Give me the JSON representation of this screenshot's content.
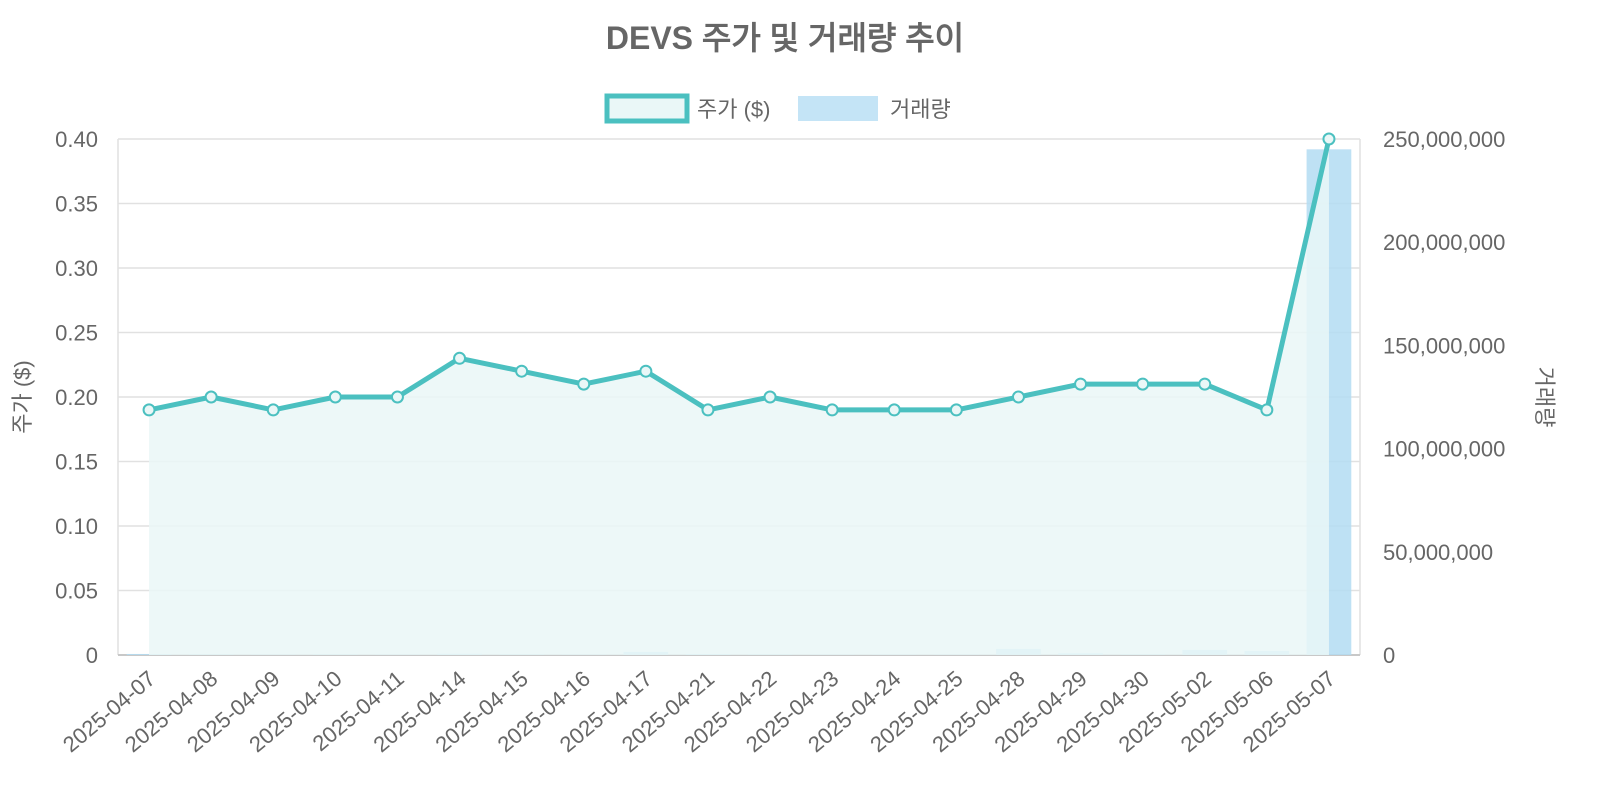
{
  "chart_data": {
    "type": "line+bar",
    "title": "DEVS 주가 및 거래량 추이",
    "categories": [
      "2025-04-07",
      "2025-04-08",
      "2025-04-09",
      "2025-04-10",
      "2025-04-11",
      "2025-04-14",
      "2025-04-15",
      "2025-04-16",
      "2025-04-17",
      "2025-04-21",
      "2025-04-22",
      "2025-04-23",
      "2025-04-24",
      "2025-04-25",
      "2025-04-28",
      "2025-04-29",
      "2025-04-30",
      "2025-05-02",
      "2025-05-06",
      "2025-05-07"
    ],
    "series": [
      {
        "name": "주가 ($)",
        "type": "line",
        "axis": "left",
        "color": "#4bc0c0",
        "fill": "#eaf7f7",
        "values": [
          0.19,
          0.2,
          0.19,
          0.2,
          0.2,
          0.23,
          0.22,
          0.21,
          0.22,
          0.19,
          0.2,
          0.19,
          0.19,
          0.19,
          0.2,
          0.21,
          0.21,
          0.21,
          0.19,
          0.4
        ]
      },
      {
        "name": "거래량",
        "type": "bar",
        "axis": "right",
        "color": "#b3dcf2",
        "values": [
          500000,
          300000,
          200000,
          300000,
          200000,
          600000,
          300000,
          200000,
          1500000,
          500000,
          300000,
          200000,
          200000,
          200000,
          3000000,
          800000,
          300000,
          2500000,
          2000000,
          245000000
        ]
      }
    ],
    "y_left": {
      "label": "주가 ($)",
      "min": 0,
      "max": 0.4,
      "ticks": [
        "0",
        "0.05",
        "0.10",
        "0.15",
        "0.20",
        "0.25",
        "0.30",
        "0.35",
        "0.40"
      ]
    },
    "y_right": {
      "label": "거래량",
      "min": 0,
      "max": 250000000,
      "ticks": [
        "0",
        "50,000,000",
        "100,000,000",
        "150,000,000",
        "200,000,000",
        "250,000,000"
      ]
    },
    "legend_position": "top-center",
    "grid": true
  }
}
